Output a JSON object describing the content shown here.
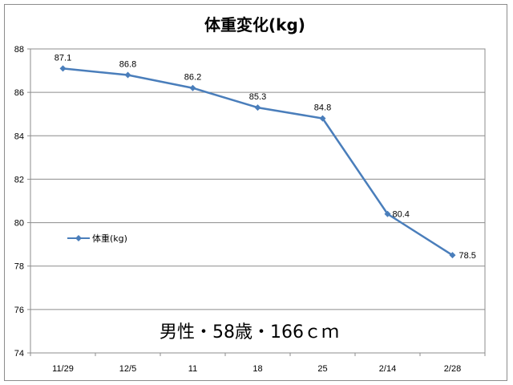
{
  "chart_data": {
    "type": "line",
    "title": "体重変化(kg)",
    "categories": [
      "11/29",
      "12/5",
      "11",
      "18",
      "25",
      "2/14",
      "2/28"
    ],
    "series": [
      {
        "name": "体重(kg)",
        "values": [
          87.1,
          86.8,
          86.2,
          85.3,
          84.8,
          80.4,
          78.5
        ],
        "color": "#4a7ebb"
      }
    ],
    "data_labels": [
      "87.1",
      "86.8",
      "86.2",
      "85.3",
      "84.8",
      "80.4",
      "78.5"
    ],
    "y_ticks": [
      "74",
      "76",
      "78",
      "80",
      "82",
      "84",
      "86",
      "88"
    ],
    "ylim": [
      74,
      88
    ],
    "grid": true,
    "legend": "left-middle",
    "annotation": "男性・58歳・166ｃｍ"
  }
}
